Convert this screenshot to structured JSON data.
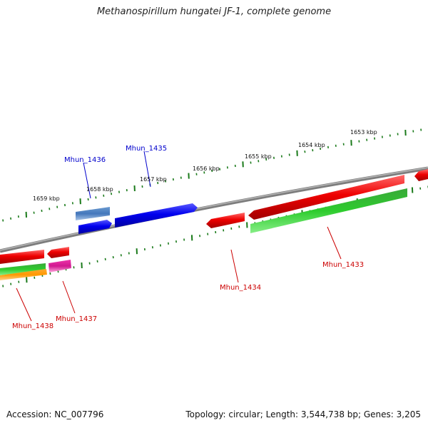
{
  "title": "Methanospirillum hungatei JF-1, complete genome",
  "footer": {
    "accession": "Accession: NC_007796",
    "topology": "Topology: circular; Length: 3,544,738 bp; Genes: 3,205"
  },
  "ruler": {
    "labels": [
      "1659 kbp",
      "1658 kbp",
      "1657 kbp",
      "1656 kbp",
      "1655 kbp",
      "1654 kbp",
      "1653 kbp"
    ]
  },
  "genes": [
    {
      "name": "Mhun_1433",
      "strand": "forward",
      "color": "#cc0000"
    },
    {
      "name": "Mhun_1434",
      "strand": "forward",
      "color": "#cc0000"
    },
    {
      "name": "Mhun_1435",
      "strand": "reverse",
      "color": "#0000cc"
    },
    {
      "name": "Mhun_1436",
      "strand": "reverse",
      "color": "#0000cc"
    },
    {
      "name": "Mhun_1437",
      "strand": "forward",
      "color": "#cc0000"
    },
    {
      "name": "Mhun_1438",
      "strand": "forward",
      "color": "#cc0000"
    }
  ],
  "colors": {
    "backbone": "#888888",
    "ruler": "#1a7a1a",
    "cds_forward": "#ee0000",
    "cds_reverse": "#0000ee",
    "gene_track": "#2ecc2e",
    "rna_track": "#ff9900",
    "pseudo_track": "#e0209a",
    "blue_gene_track": "#4477bb"
  }
}
